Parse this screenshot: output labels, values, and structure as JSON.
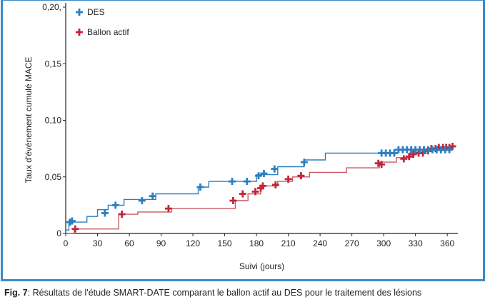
{
  "caption": {
    "label": "Fig. 7",
    "text": ": Résultats de l'étude SMART-DATE comparant le ballon actif au DES pour le traitement des lésions"
  },
  "colors": {
    "frame": "#3a8bc8",
    "des": "#2b7fc1",
    "ballon": "#c0273a",
    "ballon_line": "#c9595f"
  },
  "chart_data": {
    "type": "line",
    "subtype": "step",
    "xlabel": "Suivi (jours)",
    "ylabel": "Taux d'événement cumulé MACE",
    "xlim": [
      0,
      370
    ],
    "ylim": [
      0,
      0.2
    ],
    "xticks": [
      0,
      30,
      60,
      90,
      120,
      150,
      180,
      210,
      240,
      270,
      300,
      330,
      360
    ],
    "yticks": [
      0,
      0.05,
      0.1,
      0.15,
      0.2
    ],
    "ytick_labels": [
      "0",
      "0,05",
      "0,10",
      "0,15",
      "0,20,"
    ],
    "legend": "top-left",
    "series": [
      {
        "name": "DES",
        "steps": [
          [
            0,
            0.003
          ],
          [
            3,
            0.01
          ],
          [
            20,
            0.015
          ],
          [
            30,
            0.021
          ],
          [
            40,
            0.025
          ],
          [
            55,
            0.03
          ],
          [
            85,
            0.035
          ],
          [
            125,
            0.041
          ],
          [
            135,
            0.046
          ],
          [
            180,
            0.052
          ],
          [
            200,
            0.059
          ],
          [
            225,
            0.065
          ],
          [
            245,
            0.071
          ],
          [
            310,
            0.074
          ],
          [
            365,
            0.076
          ]
        ],
        "censor": [
          [
            4,
            0.01
          ],
          [
            6,
            0.011
          ],
          [
            37,
            0.018
          ],
          [
            47,
            0.025
          ],
          [
            72,
            0.029
          ],
          [
            82,
            0.033
          ],
          [
            127,
            0.041
          ],
          [
            157,
            0.046
          ],
          [
            171,
            0.046
          ],
          [
            182,
            0.051
          ],
          [
            187,
            0.053
          ],
          [
            197,
            0.057
          ],
          [
            225,
            0.063
          ],
          [
            298,
            0.071
          ],
          [
            302,
            0.071
          ],
          [
            306,
            0.071
          ],
          [
            310,
            0.071
          ],
          [
            314,
            0.074
          ],
          [
            318,
            0.074
          ],
          [
            322,
            0.074
          ],
          [
            326,
            0.074
          ],
          [
            330,
            0.074
          ],
          [
            334,
            0.074
          ],
          [
            338,
            0.074
          ],
          [
            342,
            0.074
          ],
          [
            346,
            0.074
          ],
          [
            350,
            0.074
          ],
          [
            354,
            0.074
          ],
          [
            358,
            0.074
          ],
          [
            362,
            0.074
          ]
        ]
      },
      {
        "name": "Ballon actif",
        "steps": [
          [
            0,
            0.0
          ],
          [
            8,
            0.004
          ],
          [
            50,
            0.017
          ],
          [
            68,
            0.019
          ],
          [
            100,
            0.022
          ],
          [
            160,
            0.029
          ],
          [
            172,
            0.035
          ],
          [
            184,
            0.042
          ],
          [
            200,
            0.046
          ],
          [
            214,
            0.05
          ],
          [
            230,
            0.054
          ],
          [
            265,
            0.058
          ],
          [
            296,
            0.063
          ],
          [
            312,
            0.067
          ],
          [
            325,
            0.072
          ],
          [
            340,
            0.075
          ],
          [
            365,
            0.077
          ]
        ],
        "censor": [
          [
            9,
            0.004
          ],
          [
            53,
            0.017
          ],
          [
            97,
            0.022
          ],
          [
            158,
            0.029
          ],
          [
            167,
            0.035
          ],
          [
            179,
            0.037
          ],
          [
            184,
            0.04
          ],
          [
            186,
            0.042
          ],
          [
            198,
            0.043
          ],
          [
            210,
            0.048
          ],
          [
            222,
            0.051
          ],
          [
            295,
            0.062
          ],
          [
            298,
            0.061
          ],
          [
            319,
            0.066
          ],
          [
            324,
            0.068
          ],
          [
            328,
            0.07
          ],
          [
            333,
            0.071
          ],
          [
            337,
            0.071
          ],
          [
            342,
            0.073
          ],
          [
            345,
            0.075
          ],
          [
            349,
            0.075
          ],
          [
            352,
            0.076
          ],
          [
            356,
            0.076
          ],
          [
            359,
            0.076
          ],
          [
            362,
            0.076
          ],
          [
            365,
            0.077
          ]
        ]
      }
    ]
  }
}
